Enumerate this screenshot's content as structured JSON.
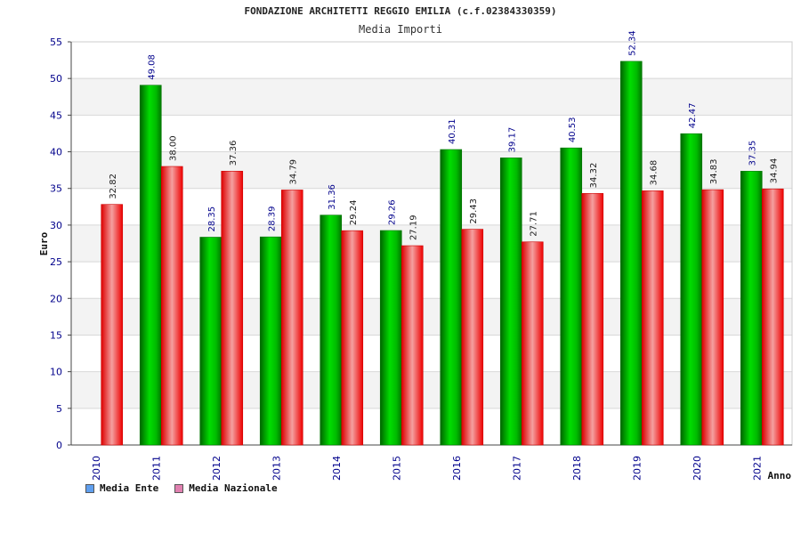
{
  "chart_data": {
    "type": "bar",
    "title": "FONDAZIONE ARCHITETTI REGGIO EMILIA (c.f.02384330359)",
    "subtitle": "Media Importi",
    "xlabel": "Anno",
    "ylabel": "Euro",
    "ylim": [
      0,
      55
    ],
    "yticks": [
      0,
      5,
      10,
      15,
      20,
      25,
      30,
      35,
      40,
      45,
      50,
      55
    ],
    "categories": [
      "2010",
      "2011",
      "2012",
      "2013",
      "2014",
      "2015",
      "2016",
      "2017",
      "2018",
      "2019",
      "2020",
      "2021"
    ],
    "series": [
      {
        "name": "Media Ente",
        "color": "#00aa00",
        "legend_color": "#5f9fef",
        "values": [
          null,
          49.08,
          28.35,
          28.39,
          31.36,
          29.26,
          40.31,
          39.17,
          40.53,
          52.34,
          42.47,
          37.35
        ],
        "labels": [
          "",
          "49.08",
          "28.35",
          "28.39",
          "31.36",
          "29.26",
          "40.31",
          "39.17",
          "40.53",
          "52.34",
          "42.47",
          "37.35"
        ]
      },
      {
        "name": "Media Nazionale",
        "color": "#ee1111",
        "legend_color": "#e080b0",
        "values": [
          32.82,
          38.0,
          37.36,
          34.79,
          29.24,
          27.19,
          29.43,
          27.71,
          34.32,
          34.68,
          34.83,
          34.94
        ],
        "labels": [
          "32.82",
          "38.00",
          "37.36",
          "34.79",
          "29.24",
          "27.19",
          "29.43",
          "27.71",
          "34.32",
          "34.68",
          "34.83",
          "34.94"
        ]
      }
    ],
    "grid": true,
    "legend_position": "bottom-left"
  }
}
